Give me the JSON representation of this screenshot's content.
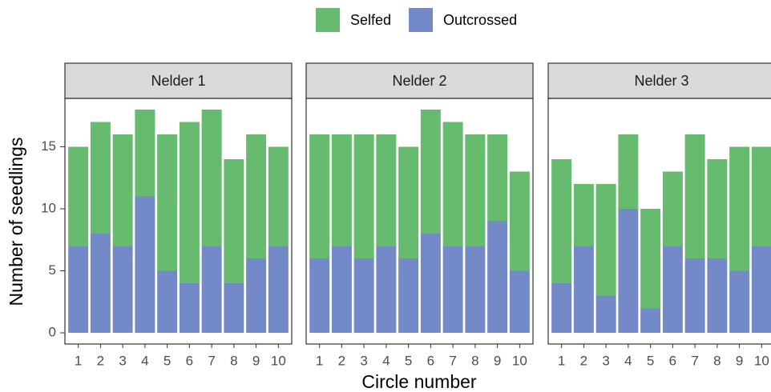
{
  "chart_data": {
    "type": "bar",
    "stacked": true,
    "xlabel": "Circle number",
    "ylabel": "Number of seedlings",
    "categories": [
      "1",
      "2",
      "3",
      "4",
      "5",
      "6",
      "7",
      "8",
      "9",
      "10"
    ],
    "ylim": [
      -0.9,
      18.9
    ],
    "yticks": [
      0,
      5,
      10,
      15
    ],
    "legend": "top",
    "series": [
      {
        "name": "Selfed",
        "color": "#66bb6e"
      },
      {
        "name": "Outcrossed",
        "color": "#7389c8"
      }
    ],
    "facets": [
      {
        "title": "Nelder 1",
        "series": [
          {
            "values": [
              8,
              9,
              9,
              7,
              11,
              13,
              11,
              10,
              10,
              8
            ]
          },
          {
            "values": [
              7,
              8,
              7,
              11,
              5,
              4,
              7,
              4,
              6,
              7
            ]
          }
        ]
      },
      {
        "title": "Nelder 2",
        "series": [
          {
            "values": [
              10,
              9,
              10,
              9,
              9,
              10,
              10,
              9,
              7,
              8
            ]
          },
          {
            "values": [
              6,
              7,
              6,
              7,
              6,
              8,
              7,
              7,
              9,
              5
            ]
          }
        ]
      },
      {
        "title": "Nelder 3",
        "series": [
          {
            "values": [
              10,
              5,
              9,
              6,
              8,
              6,
              10,
              8,
              10,
              8
            ]
          },
          {
            "values": [
              4,
              7,
              3,
              10,
              2,
              7,
              6,
              6,
              5,
              7
            ]
          }
        ]
      }
    ]
  }
}
